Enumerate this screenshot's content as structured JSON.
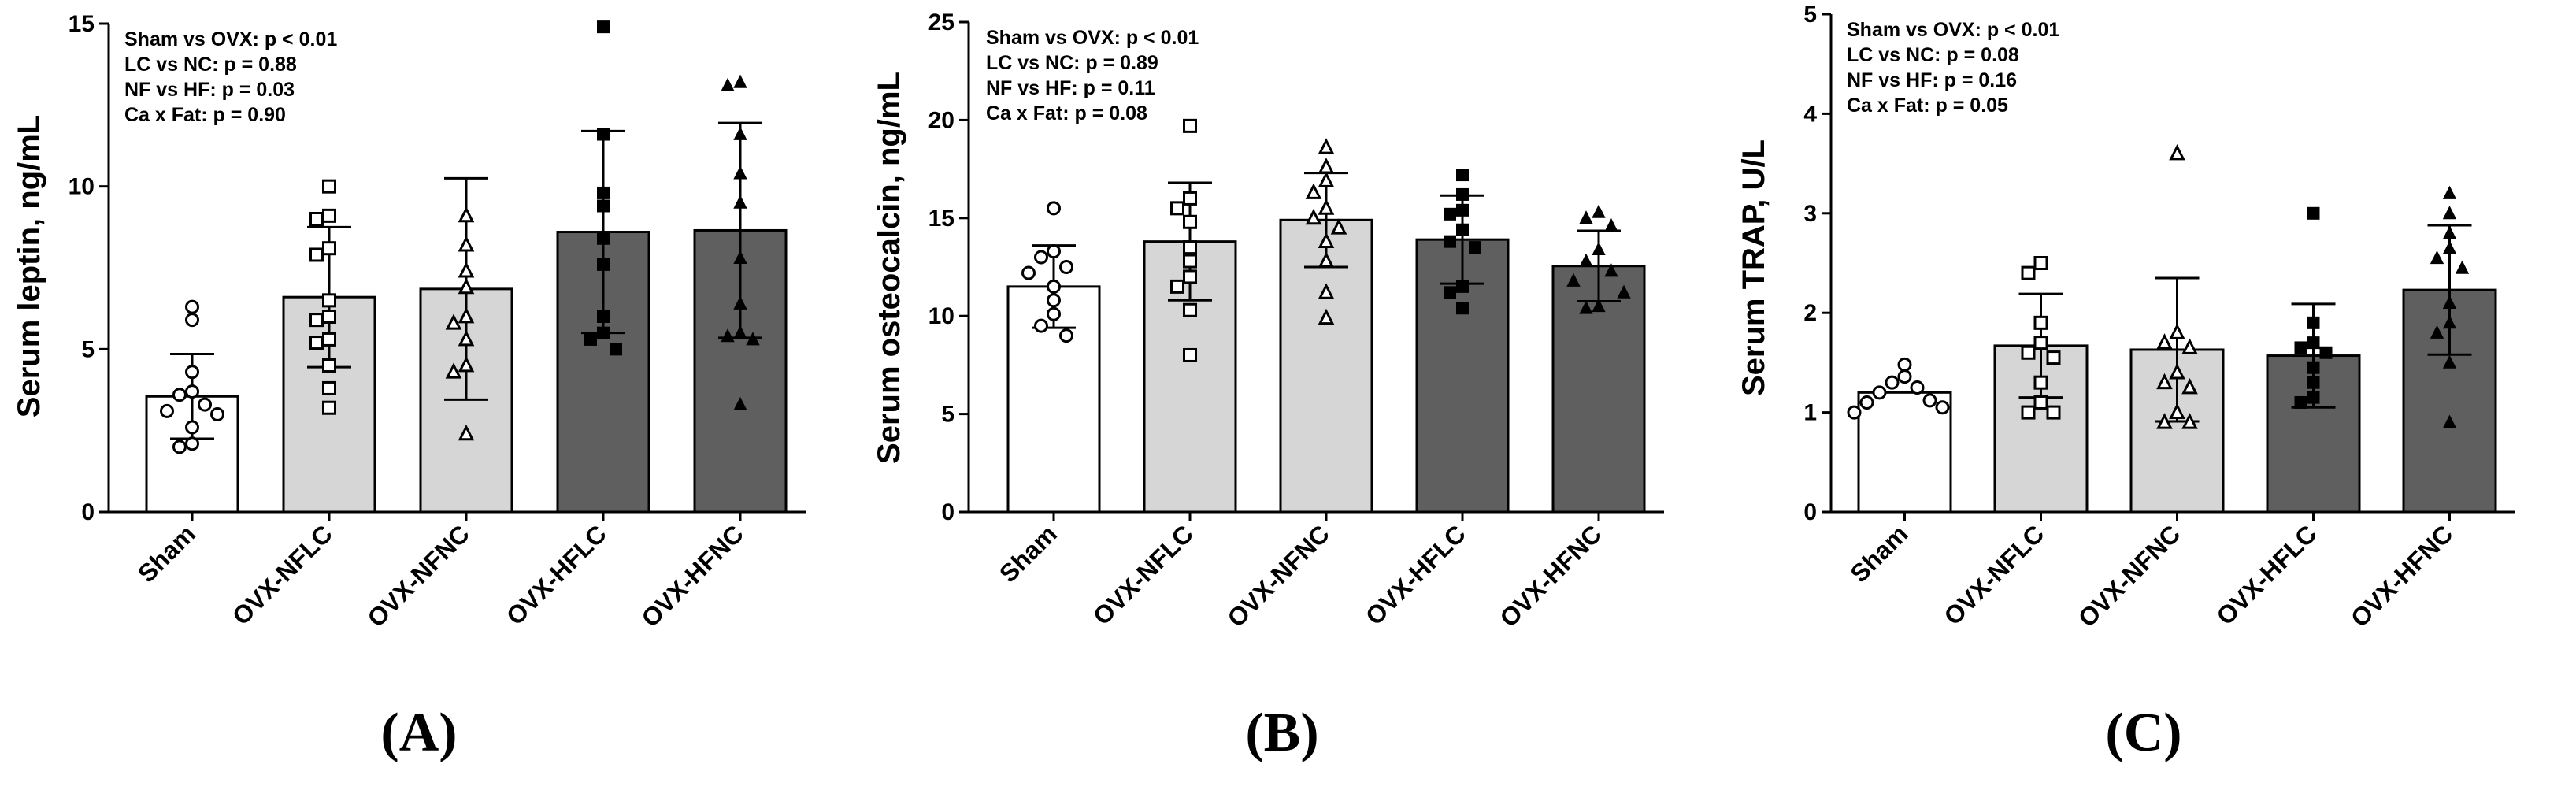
{
  "colors": {
    "white": "#ffffff",
    "light": "#d6d6d6",
    "dark": "#5f5f5f",
    "axis": "#000000"
  },
  "chart_data": [
    {
      "panel": "(A)",
      "type": "bar",
      "ylabel": "Serum leptin, ng/mL",
      "ylim": [
        0,
        15
      ],
      "yticks": [
        "0",
        "5",
        "10",
        "15"
      ],
      "categories": [
        "Sham",
        "OVX-NFLC",
        "OVX-NFNC",
        "OVX-HFLC",
        "OVX-HFNC"
      ],
      "means": [
        3.55,
        6.6,
        6.85,
        8.6,
        8.65
      ],
      "sd": [
        1.3,
        2.15,
        3.4,
        3.1,
        3.3
      ],
      "points": [
        [
          6.3,
          5.9,
          4.3,
          3.7,
          3.6,
          3.3,
          3.1,
          3.0,
          2.6,
          2.1,
          2.0
        ],
        [
          10.0,
          9.1,
          9.0,
          8.1,
          7.9,
          6.5,
          6.0,
          5.9,
          5.3,
          5.2,
          4.5,
          3.8,
          3.2
        ],
        [
          9.1,
          8.2,
          7.4,
          6.9,
          6.0,
          5.8,
          5.3,
          4.5,
          4.3,
          2.4
        ],
        [
          14.9,
          11.6,
          9.8,
          9.4,
          8.4,
          7.6,
          6.0,
          5.5,
          5.3,
          5.0
        ],
        [
          13.2,
          13.1,
          11.6,
          10.4,
          9.5,
          7.8,
          6.4,
          5.5,
          5.4,
          5.3,
          3.3
        ]
      ],
      "marker": [
        "circle-open",
        "square-open",
        "triangle-open",
        "square-filled",
        "triangle-filled"
      ],
      "annotations": [
        "Sham vs OVX: p < 0.01",
        "LC vs NC: p = 0.88",
        "NF vs HF: p = 0.03",
        "Ca x Fat: p = 0.90"
      ]
    },
    {
      "panel": "(B)",
      "type": "bar",
      "ylabel": "Serum osteocalcin, ng/mL",
      "ylim": [
        0,
        25
      ],
      "yticks": [
        "0",
        "5",
        "10",
        "15",
        "20",
        "25"
      ],
      "categories": [
        "Sham",
        "OVX-NFLC",
        "OVX-NFNC",
        "OVX-HFLC",
        "OVX-HFNC"
      ],
      "means": [
        11.5,
        13.8,
        14.9,
        13.9,
        12.55
      ],
      "sd": [
        2.1,
        3.0,
        2.4,
        2.25,
        1.8
      ],
      "points": [
        [
          15.5,
          13.3,
          13.0,
          12.5,
          12.2,
          11.5,
          10.8,
          10.1,
          9.5,
          9.0
        ],
        [
          19.7,
          16.0,
          15.5,
          14.8,
          13.5,
          12.8,
          12.0,
          11.5,
          10.3,
          8.0
        ],
        [
          18.6,
          17.6,
          16.9,
          16.3,
          15.5,
          15.0,
          14.5,
          13.8,
          12.8,
          11.2,
          9.9
        ],
        [
          17.2,
          16.2,
          15.4,
          15.2,
          14.4,
          13.8,
          13.5,
          11.5,
          11.2,
          10.4
        ],
        [
          15.3,
          15.0,
          14.6,
          13.4,
          12.8,
          12.3,
          11.8,
          11.2,
          10.5,
          10.4
        ]
      ],
      "marker": [
        "circle-open",
        "square-open",
        "triangle-open",
        "square-filled",
        "triangle-filled"
      ],
      "annotations": [
        "Sham vs OVX: p < 0.01",
        "LC vs NC: p = 0.89",
        "NF vs HF: p = 0.11",
        "Ca x Fat: p = 0.08"
      ]
    },
    {
      "panel": "(C)",
      "type": "bar",
      "ylabel": "Serum TRAP, U/L",
      "ylim": [
        0,
        5
      ],
      "yticks": [
        "0",
        "1",
        "2",
        "3",
        "4",
        "5"
      ],
      "categories": [
        "Sham",
        "OVX-NFLC",
        "OVX-NFNC",
        "OVX-HFLC",
        "OVX-HFNC"
      ],
      "means": [
        1.2,
        1.67,
        1.63,
        1.57,
        2.23
      ],
      "sd": [
        0.0,
        0.52,
        0.72,
        0.52,
        0.65
      ],
      "points": [
        [
          1.48,
          1.36,
          1.3,
          1.25,
          1.2,
          1.12,
          1.1,
          1.05,
          1.0
        ],
        [
          2.5,
          2.4,
          1.9,
          1.7,
          1.6,
          1.55,
          1.3,
          1.1,
          1.0,
          1.0
        ],
        [
          3.6,
          1.8,
          1.7,
          1.65,
          1.4,
          1.3,
          1.25,
          1.0,
          0.9,
          0.9
        ],
        [
          3.0,
          1.9,
          1.7,
          1.65,
          1.6,
          1.45,
          1.3,
          1.15,
          1.1
        ],
        [
          3.2,
          3.0,
          2.8,
          2.65,
          2.55,
          2.45,
          2.1,
          1.9,
          1.8,
          1.5,
          0.9
        ]
      ],
      "marker": [
        "circle-open",
        "square-open",
        "triangle-open",
        "square-filled",
        "triangle-filled"
      ],
      "annotations": [
        "Sham vs OVX: p < 0.01",
        "LC vs NC: p = 0.08",
        "NF vs HF: p = 0.16",
        "Ca x Fat: p = 0.05"
      ]
    }
  ]
}
